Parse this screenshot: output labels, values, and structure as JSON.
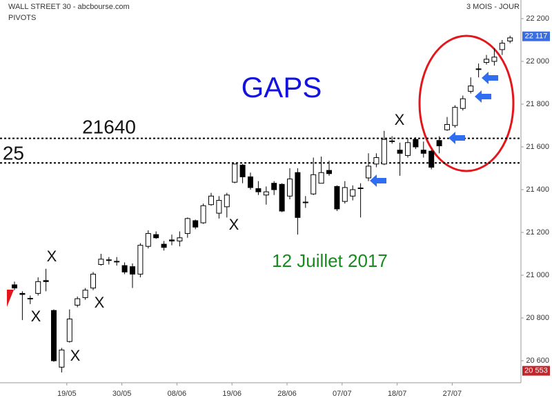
{
  "chart_data": {
    "type": "candlestick",
    "title": "WALL STREET 30 - abcbourse.com",
    "subtitle": "PIVOTS",
    "period": "3 MOIS - JOUR",
    "categories": [
      null,
      null,
      null,
      null,
      null,
      null,
      null,
      "19/05",
      null,
      null,
      null,
      null,
      null,
      null,
      "30/05",
      null,
      null,
      null,
      null,
      null,
      null,
      "08/06",
      null,
      null,
      null,
      null,
      null,
      null,
      "19/06",
      null,
      null,
      null,
      null,
      null,
      null,
      "28/06",
      null,
      null,
      null,
      null,
      null,
      null,
      "07/07",
      null,
      null,
      null,
      null,
      null,
      null,
      "18/07",
      null,
      null,
      null,
      null,
      null,
      null,
      "27/07",
      null,
      null,
      null,
      null,
      null,
      null,
      null
    ],
    "open": [
      20955,
      20915,
      20890,
      20915,
      20975,
      20835,
      20570,
      20690,
      20860,
      20895,
      20940,
      21050,
      21070,
      21065,
      21045,
      21040,
      21005,
      21135,
      21190,
      21145,
      21165,
      21160,
      21195,
      21255,
      21245,
      21330,
      21290,
      21320,
      21435,
      21515,
      21460,
      21405,
      21375,
      21430,
      21425,
      21370,
      21480,
      21340,
      21380,
      21430,
      21490,
      21415,
      21345,
      21370,
      21405,
      21455,
      21520,
      21520,
      21625,
      21585,
      21560,
      21635,
      21585,
      21580,
      21630,
      21680,
      21700,
      21780,
      21860,
      21965,
      21995,
      22000,
      22055,
      22095
    ],
    "high": [
      20970,
      20925,
      20905,
      20990,
      21030,
      20840,
      20660,
      20840,
      20900,
      20940,
      21015,
      21100,
      21085,
      21085,
      21060,
      21055,
      21150,
      21210,
      21205,
      21160,
      21190,
      21205,
      21270,
      21260,
      21335,
      21385,
      21370,
      21385,
      21520,
      21520,
      21480,
      21440,
      21415,
      21440,
      21430,
      21500,
      21500,
      21370,
      21550,
      21555,
      21535,
      21420,
      21440,
      21420,
      21430,
      21570,
      21570,
      21675,
      21650,
      21620,
      21640,
      21645,
      21625,
      21585,
      21650,
      21740,
      21795,
      21840,
      21925,
      21990,
      22030,
      22060,
      22100,
      22120
    ],
    "low": [
      20930,
      20790,
      20865,
      20905,
      20925,
      20595,
      20545,
      20685,
      20850,
      20885,
      20930,
      21045,
      21050,
      21045,
      21005,
      20940,
      20990,
      21125,
      21170,
      21115,
      21140,
      21135,
      21175,
      21215,
      21240,
      21325,
      21265,
      21270,
      21430,
      21430,
      21400,
      21375,
      21330,
      21375,
      21295,
      21355,
      21190,
      21315,
      21375,
      21430,
      21465,
      21300,
      21335,
      21350,
      21270,
      21440,
      21505,
      21515,
      21615,
      21465,
      21550,
      21590,
      21550,
      21495,
      21570,
      21675,
      21690,
      21770,
      21850,
      21925,
      21985,
      21980,
      22030,
      22085
    ],
    "close": [
      20940,
      20910,
      20892,
      20970,
      20970,
      20600,
      20650,
      20795,
      20890,
      20930,
      21005,
      21075,
      21072,
      21062,
      21015,
      21005,
      21140,
      21195,
      21175,
      21130,
      21160,
      21175,
      21265,
      21225,
      21325,
      21370,
      21350,
      21375,
      21520,
      21460,
      21410,
      21390,
      21390,
      21400,
      21300,
      21450,
      21270,
      21342,
      21470,
      21480,
      21475,
      21310,
      21410,
      21400,
      21408,
      21510,
      21550,
      21635,
      21628,
      21570,
      21620,
      21600,
      21570,
      21505,
      21605,
      21705,
      21785,
      21825,
      21885,
      21965,
      22010,
      22020,
      22085,
      22110
    ],
    "up_color": "#ffffff",
    "down_color": "#000000",
    "ylim": [
      20497,
      22287
    ],
    "yticks": [
      {
        "value": 20600,
        "label": "20 600"
      },
      {
        "value": 20800,
        "label": "20 800"
      },
      {
        "value": 21000,
        "label": "21 000"
      },
      {
        "value": 21200,
        "label": "21 200"
      },
      {
        "value": 21400,
        "label": "21 400"
      },
      {
        "value": 21600,
        "label": "21 600"
      },
      {
        "value": 21800,
        "label": "21 800"
      },
      {
        "value": 22000,
        "label": "22 000"
      },
      {
        "value": 22200,
        "label": "22 200"
      }
    ],
    "last_price": {
      "value": 22117,
      "label": "22 117",
      "color": "#3b6fe0"
    },
    "low_price": {
      "value": 20553,
      "label": "20 553",
      "color": "#c0272d"
    },
    "levels": [
      {
        "value": 21640,
        "label": "21640"
      },
      {
        "value": 21525,
        "label": "25"
      }
    ],
    "annotations": [
      "GAPS",
      "12 Juillet 2017",
      "X",
      "X",
      "X",
      "X",
      "X",
      "X"
    ]
  }
}
